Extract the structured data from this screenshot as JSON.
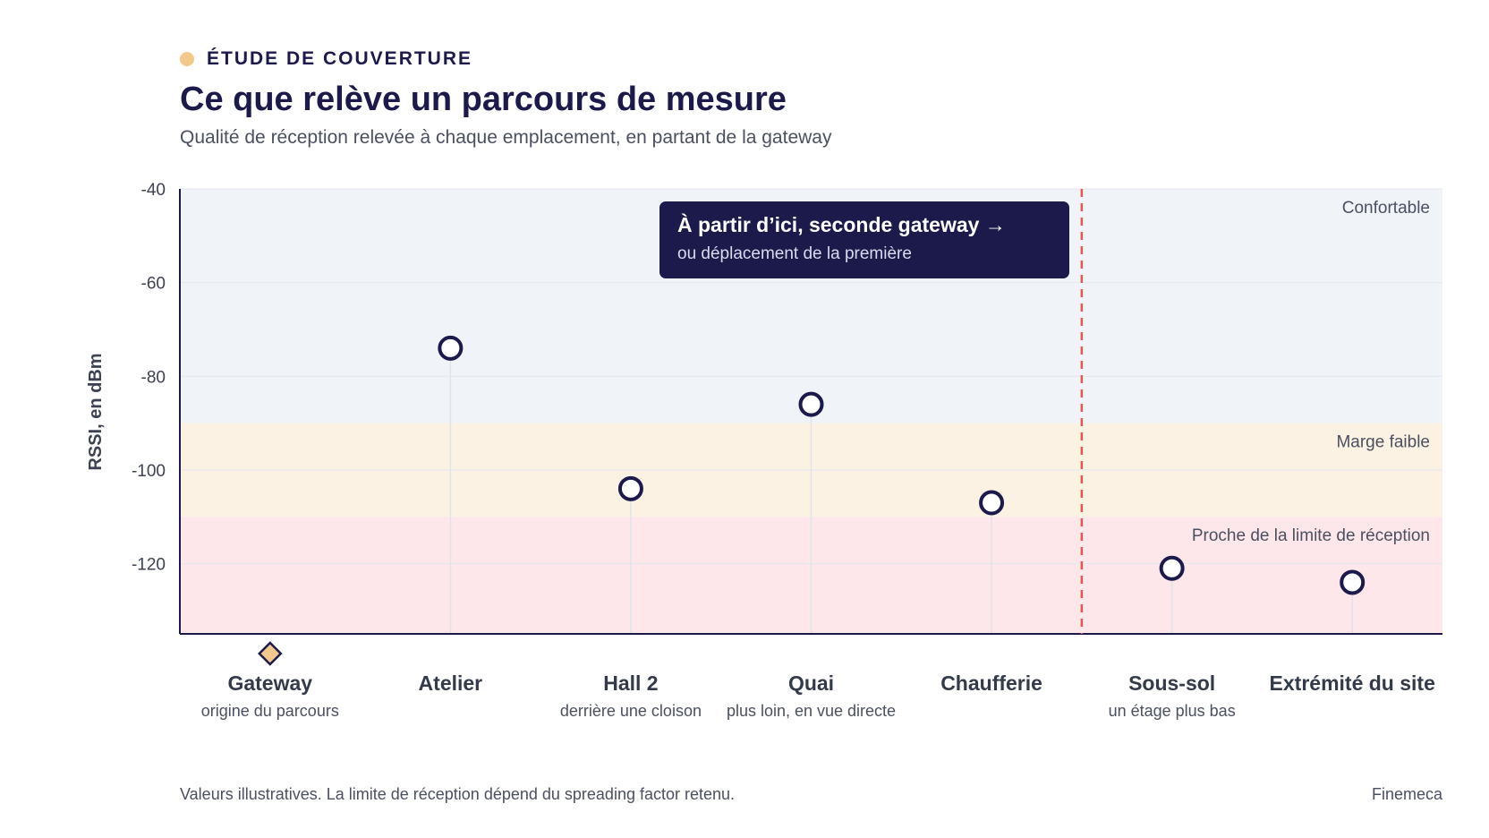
{
  "header": {
    "eyebrow": "ÉTUDE DE COUVERTURE",
    "title": "Ce que relève un parcours de mesure",
    "subtitle": "Qualité de réception relevée à chaque emplacement, en partant de la gateway"
  },
  "colors": {
    "navy": "#1b1a4b",
    "accent_gold": "#f2c98a",
    "zone_comfortable": "#f0f3f8",
    "zone_low_margin": "#fbf2e3",
    "zone_limit": "#fde7ea",
    "threshold_line": "#e05a4f",
    "muted_text": "#4b5061"
  },
  "chart_data": {
    "type": "scatter",
    "ylabel": "RSSI, en dBm",
    "ylim": [
      -135,
      -40
    ],
    "yticks": [
      -40,
      -60,
      -80,
      -100,
      -120
    ],
    "grid": true,
    "categories": [
      {
        "label": "Gateway",
        "sublabel": "origine du parcours",
        "rssi": null,
        "marker": "diamond"
      },
      {
        "label": "Atelier",
        "sublabel": "",
        "rssi": -74
      },
      {
        "label": "Hall 2",
        "sublabel": "derrière une cloison",
        "rssi": -104
      },
      {
        "label": "Quai",
        "sublabel": "plus loin, en vue directe",
        "rssi": -86
      },
      {
        "label": "Chaufferie",
        "sublabel": "",
        "rssi": -107
      },
      {
        "label": "Sous-sol",
        "sublabel": "un étage plus bas",
        "rssi": -121
      },
      {
        "label": "Extrémité du site",
        "sublabel": "",
        "rssi": -124
      }
    ],
    "zones": [
      {
        "label": "Confortable",
        "from": -90,
        "to": -40
      },
      {
        "label": "Marge faible",
        "from": -110,
        "to": -90
      },
      {
        "label": "Proche de la limite de réception",
        "from": -135,
        "to": -110
      }
    ],
    "threshold": {
      "between": [
        "Chaufferie",
        "Sous-sol"
      ]
    },
    "annotation": {
      "title": "À partir d’ici, seconde gateway →",
      "subtitle": "ou déplacement de la première"
    }
  },
  "footer": {
    "note": "Valeurs illustratives. La limite de réception dépend du spreading factor retenu.",
    "brand": "Finemeca"
  }
}
